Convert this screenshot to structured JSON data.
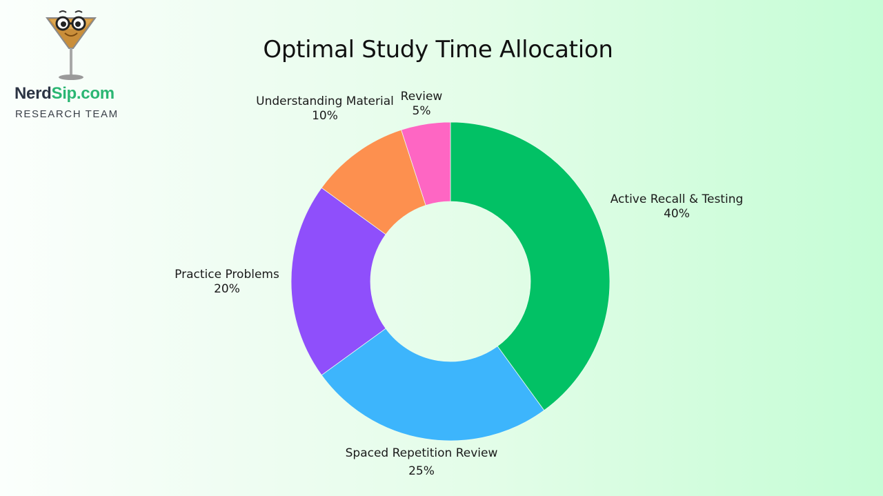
{
  "brand": {
    "name_part1": "Nerd",
    "name_part2": "Sip.com",
    "tagline": "RESEARCH TEAM",
    "logo_icon": "martini-glass-with-glasses-icon"
  },
  "chart_data": {
    "type": "pie",
    "variant": "donut",
    "title": "Optimal Study Time Allocation",
    "start_angle_deg": 0,
    "direction": "clockwise",
    "inner_radius_ratio": 0.5,
    "categories": [
      "Active Recall & Testing",
      "Spaced Repetition Review",
      "Practice Problems",
      "Understanding Material",
      "Review"
    ],
    "values": [
      40,
      25,
      20,
      10,
      5
    ],
    "unit": "%",
    "colors": [
      "#02c165",
      "#3db5fc",
      "#8f4ffb",
      "#fd904f",
      "#fe66c3"
    ],
    "legend": "none",
    "labels": [
      {
        "name": "Active Recall & Testing",
        "value": "40%"
      },
      {
        "name": "Spaced Repetition Review",
        "value": "25%"
      },
      {
        "name": "Practice Problems",
        "value": "20%"
      },
      {
        "name": "Understanding Material",
        "value": "10%"
      },
      {
        "name": "Review",
        "value": "5%"
      }
    ]
  }
}
